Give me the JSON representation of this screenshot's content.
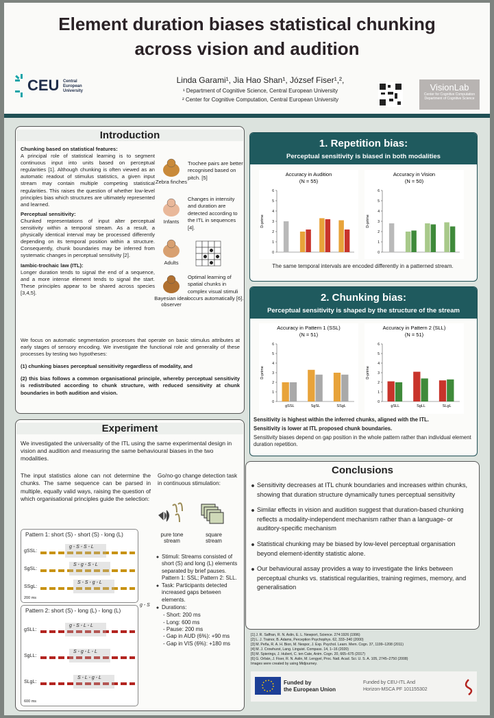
{
  "header": {
    "title": [
      "Element duration biases statistical chunking",
      "across vision and audition"
    ],
    "authors": "Linda Garami¹, Jia Hao Shan¹, József Fiser¹,²,",
    "affiliations": [
      "¹ Department of Cognitive Science, Central European University",
      "² Center for Cognitive Computation, Central European University"
    ],
    "logo": {
      "short": "CEU",
      "long": "Central European University"
    },
    "lab": {
      "name": "VisionLab",
      "lines": [
        "Center for Cognitive Computation",
        "Department of Cognitive Science"
      ]
    }
  },
  "introduction": {
    "heading": "Introduction",
    "body": [
      {
        "heading": "Chunking based on statistical features:",
        "text": "A principal role of statistical learning is to segment continuous input into units based on perceptual regularities [1]. Although chunking is often viewed as an automatic readout of stimulus statistics, a given input stream may contain multiple competing statistical regularities. This raises the question of whether low-level principles bias which structures are ultimately represented and learned."
      },
      {
        "heading": "Perceptual sensitivity:",
        "text": "Chunked representations of input alter perceptual sensitivity within a temporal stream. As a result, a physically identical interval may be processed differently depending on its temporal position within a structure. Consequently, chunk boundaries may be inferred from systematic changes in perceptual sensitivity [2]."
      },
      {
        "heading": "Iambic-trochaic law (ITL):",
        "text": "Longer duration tends to signal the end of a sequence, and a more intense element tends to signal the start. These principles appear to be shared across species [3,4,5]."
      }
    ],
    "figures": [
      {
        "label": "Zebra finches",
        "text": "Trochee pairs are better recognised based on pitch. [5]"
      },
      {
        "label": "Infants",
        "text": "Changes in intensity and duration are detected according to the ITL in sequences [4]."
      },
      {
        "label": "Adults"
      },
      {
        "label": "Bayesian ideal observer",
        "text": "Optimal learning of spatial chunks in complex visual stimuli occurs automatically [6]."
      }
    ],
    "focus": "We focus on automatic segmentation processes that operate on basic stimulus attributes at early stages of sensory encoding. We investigate the functional role and generality of these processes by testing two hypotheses:",
    "hypotheses": [
      "(1) chunking biases perceptual sensitivity regardless of modality, and",
      "(2) this bias follows a common organisational principle, whereby perceptual sensitivity is redistributed according to chunk structure, with reduced sensitivity at chunk boundaries in both audition and vision."
    ]
  },
  "experiment": {
    "heading": "Experiment",
    "intro": "We investigated the universality of the ITL using the same experimental design in vision and audition and measuring the same behavioural biases in the two modalities.",
    "problem": "The input statistics alone can not determine the chunks. The same sequence can be parsed in multiple, equally valid ways, raising the question of which organisational principles guide the selection:",
    "task": "Go/no-go change detection task in continuous stimulation:",
    "streams": [
      "pure tone stream",
      "square stream"
    ],
    "bullets": [
      "Stimuli: Streams consisted of short (S) and long (L) elements separated by brief pauses. Pattern 1: SSL; Pattern 2: SLL.",
      "Task: Participants detected increased gaps between elements.",
      "Durations:"
    ],
    "durations": [
      "- Short: 200 ms",
      "- Long: 600 ms",
      "- Pause: 200 ms",
      "- Gap in AUD (6%): +90 ms",
      "- Gap in VIS (6%): +180 ms"
    ],
    "side_label": "g - S",
    "patterns": [
      {
        "title": "Pattern 1: short (S) - short (S) - long (L)",
        "scale": "200 ms",
        "rows": [
          {
            "label": "gSSL:",
            "parse": "g - S - S - L"
          },
          {
            "label": "SgSL:",
            "parse": "S - g - S - L"
          },
          {
            "label": "SSgL:",
            "parse": "S - S - g - L"
          }
        ]
      },
      {
        "title": "Pattern 2: short (S) - long (L) - long (L)",
        "scale": "600 ms",
        "rows": [
          {
            "label": "gSLL:",
            "parse": "g - S - L - L"
          },
          {
            "label": "SgLL:",
            "parse": "S - g - L - L"
          },
          {
            "label": "SLgL:",
            "parse": "S - L - g - L"
          }
        ]
      }
    ]
  },
  "repetition": {
    "heading": "1. Repetition bias:",
    "subtitle": "Perceptual sensitivity is biased in both modalities",
    "charts": [
      {
        "type": "bar",
        "title": "Accuracy in Audition",
        "n": "(N = 55)",
        "ylabel": "D-prime",
        "ylim": [
          0,
          6
        ],
        "yticks": [
          0,
          1,
          2,
          3,
          4,
          5,
          6
        ],
        "series": [
          {
            "color": "#b9b9b9",
            "values": [
              3.0,
              null,
              null,
              null
            ]
          },
          {
            "color": "#e8a33a",
            "values": [
              null,
              2.0,
              3.3,
              3.1
            ]
          },
          {
            "color": "#c8342b",
            "values": [
              null,
              2.2,
              3.2,
              2.2
            ]
          }
        ]
      },
      {
        "type": "bar",
        "title": "Accuracy in Vision",
        "n": "(N = 50)",
        "ylabel": "D-prime",
        "ylim": [
          0,
          6
        ],
        "yticks": [
          0,
          1,
          2,
          3,
          4,
          5,
          6
        ],
        "series": [
          {
            "color": "#b9b9b9",
            "values": [
              2.8,
              null,
              null,
              null
            ]
          },
          {
            "color": "#a8c98a",
            "values": [
              null,
              2.0,
              2.8,
              2.9
            ]
          },
          {
            "color": "#3f8a3a",
            "values": [
              null,
              2.1,
              2.7,
              2.5
            ]
          }
        ]
      }
    ],
    "caption": "The same temporal intervals are encoded differently in a patterned stream."
  },
  "chunking": {
    "heading": "2. Chunking bias:",
    "subtitle": "Perceptual sensitivity is shaped by the structure of the stream",
    "charts": [
      {
        "type": "bar",
        "title": "Accuracy in Pattern 1 (SSL)",
        "n": "(N = 51)",
        "ylabel": "D-prime",
        "ylim": [
          0,
          6
        ],
        "yticks": [
          0,
          1,
          2,
          3,
          4,
          5,
          6
        ],
        "categories": [
          "gSSL",
          "SgSL",
          "SSgL"
        ],
        "series": [
          {
            "color": "#e8a33a",
            "values": [
              2.0,
              3.3,
              3.0
            ]
          },
          {
            "color": "#a9a9a9",
            "values": [
              2.0,
              2.8,
              2.8
            ]
          }
        ]
      },
      {
        "type": "bar",
        "title": "Accuracy in Pattern 2 (SLL)",
        "n": "(N = 51)",
        "ylabel": "D-prime",
        "ylim": [
          0,
          6
        ],
        "yticks": [
          0,
          1,
          2,
          3,
          4,
          5,
          6
        ],
        "categories": [
          "gSLL",
          "SgLL",
          "SLgL"
        ],
        "series": [
          {
            "color": "#c8342b",
            "values": [
              2.1,
              3.1,
              2.2
            ]
          },
          {
            "color": "#3f8a3a",
            "values": [
              2.0,
              2.4,
              2.3
            ]
          }
        ]
      }
    ],
    "captions": [
      "Sensitivity is highest within the inferred chunks, aligned with the ITL.",
      "Sensitivity is lower at ITL proposed chunk boundaries.",
      "Sensitivity biases depend on gap position in the whole pattern rather than individual element duration repetition."
    ]
  },
  "conclusions": {
    "heading": "Conclusions",
    "bullets": [
      "Sensitivity decreases at ITL chunk boundaries and increases within chunks, showing that duration structure dynamically tunes perceptual sensitivity",
      "Similar effects in vision and audition suggest that duration-based chunking reflects a modality-independent mechanism rather than a language- or auditory-specific mechanism",
      "Statistical chunking may be biased by low-level perceptual organisation beyond element-identity statistic alone.",
      "Our behavioural assay provides a way to investigate the links between perceptual chunks vs. statistical regularities, training regimes, memory, and generalisation"
    ]
  },
  "references": [
    "[1] J. R. Saffran, R. N. Aslin, E. L. Newport, Science. 274:1926 (1996)",
    "[2] L. J. Trainor, B. Adams, Perception Psychophys. 62, 333–340 (2000)",
    "[3] M. Peña, R. A. H. Bion, M. Nespor, J. Exp. Psychol. Learn. Mem. Cogn. 37, 1199–1208 (2011)",
    "[4] M. J. Crowhurst, Lang. Linguist. Compass. 14, 1–16 (2020)",
    "[5] M. Spierings, J. Hubert, C. ten Cate, Anim. Cogn. 20, 665–675 (2017)",
    "[6] G. Orbán, J. Fiser, R. N. Aslin, M. Lengyel, Proc. Natl. Acad. Sci. U. S. A. 105, 2745–2750 (2008)",
    "Images were created by using Midjourney."
  ],
  "funding": {
    "eu": [
      "Funded by",
      "the European Union"
    ],
    "grant": [
      "Funded by CEU-ITL And",
      "Horizon-MSCA PF 101155302"
    ]
  }
}
